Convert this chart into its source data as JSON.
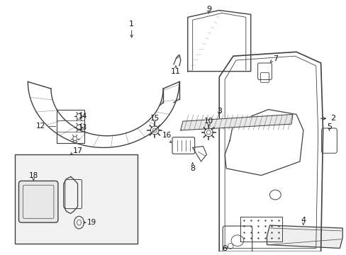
{
  "bg_color": "#ffffff",
  "line_color": "#404040",
  "text_color": "#111111",
  "fig_width": 4.89,
  "fig_height": 3.6,
  "dpi": 100
}
